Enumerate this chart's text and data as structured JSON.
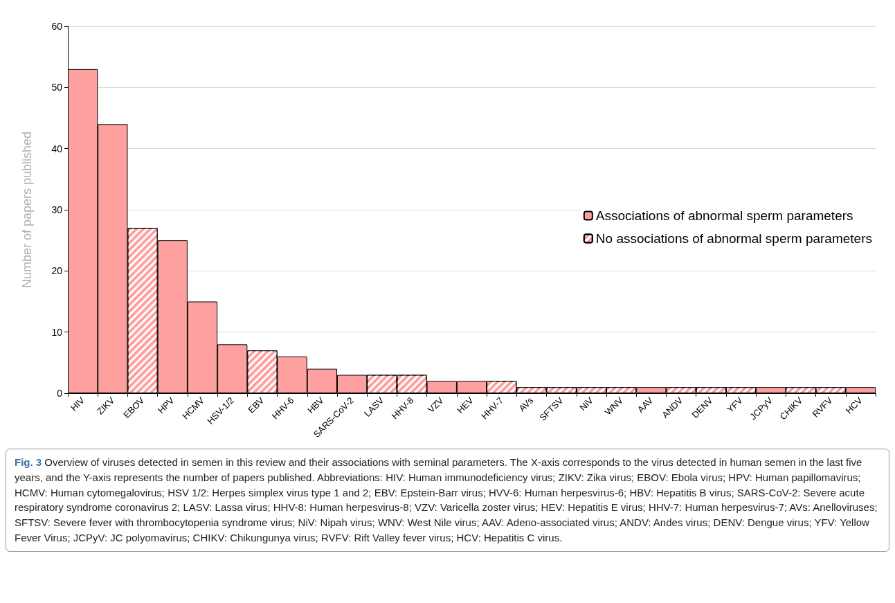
{
  "chart_data": {
    "type": "bar",
    "title": "Fig. 3",
    "ylabel": "Number of papers published",
    "categories": [
      "HIV",
      "ZIKV",
      "EBOV",
      "HPV",
      "HCMV",
      "HSV-1/2",
      "EBV",
      "HHV-6",
      "HBV",
      "SARS-CoV-2",
      "LASV",
      "HHV-8",
      "VZV",
      "HEV",
      "HHV-7",
      "AVs",
      "SFTSV",
      "NiV",
      "WNV",
      "AAV",
      "ANDV",
      "DENV",
      "YFV",
      "JCPyV",
      "CHIKV",
      "RVFV",
      "HCV"
    ],
    "series": [
      {
        "name": "Associations of abnormal sperm parameters",
        "color": "#ffa0a0",
        "values": [
          53,
          44,
          null,
          25,
          15,
          8,
          null,
          6,
          4,
          3,
          null,
          null,
          2,
          2,
          null,
          null,
          null,
          null,
          null,
          1,
          null,
          null,
          null,
          1,
          null,
          null,
          1
        ]
      },
      {
        "name": "No associations of abnormal sperm parameters",
        "color": "#ffa0a0",
        "values": [
          null,
          null,
          27,
          null,
          null,
          null,
          7,
          null,
          null,
          null,
          3,
          3,
          null,
          null,
          2,
          1,
          1,
          1,
          1,
          null,
          1,
          1,
          1,
          null,
          1,
          1,
          null
        ]
      }
    ],
    "stacked": true,
    "ylim": [
      0,
      60
    ],
    "yticks": [
      0,
      10,
      20,
      30,
      40,
      50,
      60
    ],
    "grid": "y",
    "legend": "right",
    "annotations": [
      "Overview of viruses detected in semen in this review and their associations with seminal parameters. The X-axis corresponds to the virus detected in human semen in the last five years, and the Y-axis represents the number of papers published. Abbreviations: HIV: Human immunodeficiency virus; ZIKV: Zika virus; EBOV: Ebola virus; HPV: Human papillomavirus; HCMV: Human cytomegalovirus; HSV 1/2: Herpes simplex virus type 1 and 2; EBV: Epstein-Barr virus; HVV-6: Human herpesvirus-6; HBV: Hepatitis B virus; SARS-CoV-2: Severe acute respiratory syndrome coronavirus 2; LASV: Lassa virus; HHV-8: Human herpesvirus-8; VZV: Varicella zoster virus; HEV: Hepatitis E virus; HHV-7: Human herpesvirus-7; AVs: Anelloviruses; SFTSV: Severe fever with thrombocytopenia syndrome virus; NiV: Nipah virus; WNV: West Nile virus; AAV: Adeno-associated virus; ANDV: Andes virus; DENV: Dengue virus; YFV: Yellow Fever Virus; JCPyV: JC polyomavirus; CHIKV: Chikungunya virus; RVFV: Rift Valley fever virus; HCV: Hepatitis C virus."
    ]
  }
}
